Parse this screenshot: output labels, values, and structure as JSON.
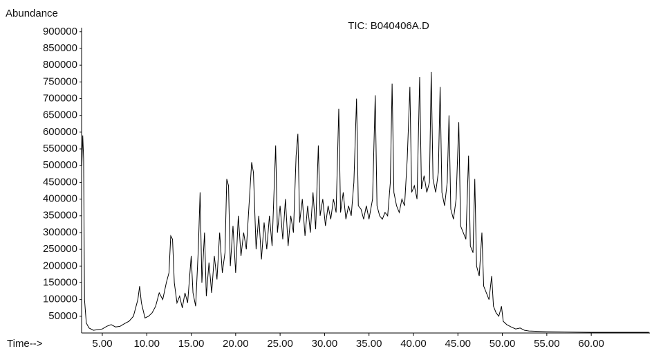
{
  "chart_data": {
    "type": "line",
    "title": "TIC: B040406A.D",
    "y_label": "Abundance",
    "x_label": "Time-->",
    "color": "#000000",
    "xlim": [
      2.67,
      66.6
    ],
    "ylim": [
      0,
      912000
    ],
    "xticks": [
      {
        "value": 5,
        "label": "5.00"
      },
      {
        "value": 10,
        "label": "10.00"
      },
      {
        "value": 15,
        "label": "15.00"
      },
      {
        "value": 20,
        "label": "20.00"
      },
      {
        "value": 25,
        "label": "25.00"
      },
      {
        "value": 30,
        "label": "30.00"
      },
      {
        "value": 35,
        "label": "35.00"
      },
      {
        "value": 40,
        "label": "40.00"
      },
      {
        "value": 45,
        "label": "45.00"
      },
      {
        "value": 50,
        "label": "50.00"
      },
      {
        "value": 55,
        "label": "55.00"
      },
      {
        "value": 60,
        "label": "60.00"
      }
    ],
    "yticks": [
      50000,
      100000,
      150000,
      200000,
      250000,
      300000,
      350000,
      400000,
      450000,
      500000,
      550000,
      600000,
      650000,
      700000,
      750000,
      800000,
      850000,
      900000
    ],
    "x": [
      2.7,
      2.8,
      2.9,
      3.0,
      3.2,
      3.5,
      4.0,
      4.5,
      5.0,
      5.5,
      6.0,
      6.5,
      7.0,
      7.5,
      8.0,
      8.5,
      9.0,
      9.2,
      9.4,
      9.8,
      10.2,
      10.6,
      11.0,
      11.4,
      11.8,
      12.2,
      12.5,
      12.7,
      12.9,
      13.1,
      13.4,
      13.7,
      14.0,
      14.3,
      14.6,
      15.0,
      15.2,
      15.5,
      15.8,
      16.0,
      16.2,
      16.5,
      16.7,
      17.0,
      17.3,
      17.6,
      17.9,
      18.2,
      18.5,
      18.8,
      19.0,
      19.2,
      19.4,
      19.7,
      20.0,
      20.3,
      20.6,
      20.9,
      21.2,
      21.5,
      21.8,
      22.0,
      22.3,
      22.6,
      22.9,
      23.2,
      23.5,
      23.8,
      24.1,
      24.5,
      24.7,
      25.0,
      25.3,
      25.6,
      25.9,
      26.2,
      26.5,
      26.8,
      27.0,
      27.2,
      27.5,
      27.8,
      28.1,
      28.4,
      28.7,
      29.0,
      29.3,
      29.5,
      29.8,
      30.1,
      30.4,
      30.7,
      31.0,
      31.3,
      31.6,
      31.8,
      32.1,
      32.4,
      32.7,
      33.0,
      33.3,
      33.6,
      33.8,
      34.1,
      34.4,
      34.7,
      35.0,
      35.4,
      35.7,
      35.9,
      36.2,
      36.5,
      36.8,
      37.1,
      37.4,
      37.6,
      37.8,
      38.1,
      38.4,
      38.7,
      39.0,
      39.3,
      39.6,
      39.8,
      40.1,
      40.4,
      40.7,
      40.9,
      41.2,
      41.5,
      41.8,
      42.0,
      42.2,
      42.5,
      42.8,
      43.0,
      43.2,
      43.5,
      43.8,
      44.0,
      44.2,
      44.5,
      44.8,
      45.1,
      45.3,
      45.6,
      45.9,
      46.2,
      46.4,
      46.7,
      46.9,
      47.1,
      47.4,
      47.7,
      47.9,
      48.2,
      48.5,
      48.8,
      49.0,
      49.3,
      49.6,
      49.9,
      50.1,
      50.5,
      51.0,
      51.5,
      52.0,
      52.5,
      53.0,
      54.0,
      55.0,
      57.0,
      60.0,
      63.0,
      66.5
    ],
    "values": [
      500000,
      590000,
      520000,
      100000,
      30000,
      15000,
      8000,
      10000,
      12000,
      20000,
      25000,
      18000,
      20000,
      28000,
      35000,
      50000,
      100000,
      140000,
      90000,
      45000,
      50000,
      60000,
      80000,
      120000,
      100000,
      150000,
      180000,
      290000,
      280000,
      150000,
      90000,
      110000,
      75000,
      120000,
      90000,
      230000,
      120000,
      80000,
      250000,
      420000,
      150000,
      300000,
      110000,
      210000,
      120000,
      230000,
      160000,
      300000,
      180000,
      240000,
      460000,
      440000,
      200000,
      320000,
      180000,
      350000,
      230000,
      300000,
      250000,
      380000,
      510000,
      480000,
      250000,
      350000,
      220000,
      330000,
      250000,
      350000,
      260000,
      560000,
      300000,
      380000,
      280000,
      400000,
      260000,
      350000,
      300000,
      530000,
      595000,
      330000,
      400000,
      290000,
      380000,
      300000,
      420000,
      310000,
      560000,
      350000,
      400000,
      320000,
      380000,
      340000,
      400000,
      360000,
      670000,
      360000,
      420000,
      340000,
      380000,
      350000,
      450000,
      700000,
      380000,
      370000,
      340000,
      380000,
      340000,
      400000,
      710000,
      380000,
      350000,
      340000,
      360000,
      350000,
      450000,
      745000,
      420000,
      380000,
      360000,
      400000,
      380000,
      520000,
      735000,
      420000,
      440000,
      400000,
      765000,
      430000,
      470000,
      420000,
      450000,
      780000,
      460000,
      420000,
      480000,
      735000,
      420000,
      380000,
      450000,
      650000,
      370000,
      340000,
      400000,
      630000,
      320000,
      300000,
      280000,
      530000,
      260000,
      240000,
      460000,
      200000,
      170000,
      300000,
      140000,
      120000,
      100000,
      170000,
      80000,
      60000,
      50000,
      80000,
      35000,
      25000,
      18000,
      12000,
      15000,
      8000,
      6000,
      5000,
      4000,
      3000,
      2000,
      2000,
      2000
    ]
  }
}
